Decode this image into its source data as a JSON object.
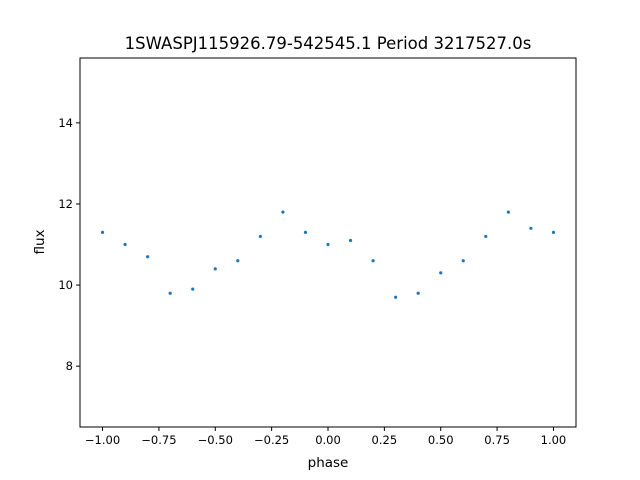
{
  "chart_data": {
    "type": "scatter",
    "title": "1SWASPJ115926.79-542545.1 Period 3217527.0s",
    "xlabel": "phase",
    "ylabel": "flux",
    "xlim": [
      -1.1,
      1.1
    ],
    "ylim": [
      6.5,
      15.6
    ],
    "xticks": [
      -1.0,
      -0.75,
      -0.5,
      -0.25,
      0.0,
      0.25,
      0.5,
      0.75,
      1.0
    ],
    "xtick_labels": [
      "−1.00",
      "−0.75",
      "−0.50",
      "−0.25",
      "0.00",
      "0.25",
      "0.50",
      "0.75",
      "1.00"
    ],
    "yticks": [
      8,
      10,
      12,
      14
    ],
    "ytick_labels": [
      "8",
      "10",
      "12",
      "14"
    ],
    "grid": false,
    "legend": "none",
    "marker_color": "#1f77b4",
    "series": [
      {
        "x": [
          -1.0,
          -0.9,
          -0.8,
          -0.7,
          -0.6,
          -0.5,
          -0.4,
          -0.3,
          -0.2,
          -0.1,
          0.0,
          0.1,
          0.2,
          0.3,
          0.4,
          0.5,
          0.6,
          0.7,
          0.8,
          0.9,
          1.0
        ],
        "y": [
          11.3,
          11.0,
          10.7,
          9.8,
          9.9,
          10.4,
          10.6,
          11.2,
          11.8,
          11.3,
          11.0,
          11.1,
          10.6,
          9.7,
          9.8,
          10.3,
          10.6,
          11.2,
          11.8,
          11.4,
          11.3
        ]
      }
    ]
  }
}
